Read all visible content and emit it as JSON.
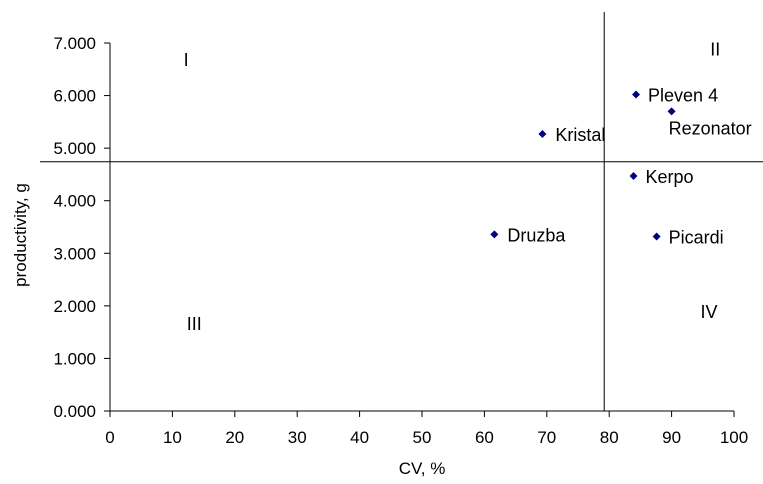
{
  "chart_data": {
    "type": "scatter",
    "title": "",
    "xlabel": "CV, %",
    "ylabel": "productivity, g",
    "xlim": [
      0,
      100
    ],
    "ylim": [
      0,
      7
    ],
    "x_ticks": [
      0,
      10,
      20,
      30,
      40,
      50,
      60,
      70,
      80,
      90,
      100
    ],
    "y_ticks": [
      0,
      1,
      2,
      3,
      4,
      5,
      6,
      7
    ],
    "x_tick_labels": [
      "0",
      "10",
      "20",
      "30",
      "40",
      "50",
      "60",
      "70",
      "80",
      "90",
      "100"
    ],
    "y_tick_labels": [
      "0.000",
      "1.000",
      "2.000",
      "3.000",
      "4.000",
      "5.000",
      "6.000",
      "7.000"
    ],
    "grid": false,
    "marker_color": "#000080",
    "points": [
      {
        "label": "Pleven 4",
        "x": 84.3,
        "y": 6.02
      },
      {
        "label": "Rezonator",
        "x": 90.0,
        "y": 5.7
      },
      {
        "label": "Kristal",
        "x": 69.3,
        "y": 5.27
      },
      {
        "label": "Kerpo",
        "x": 83.9,
        "y": 4.47
      },
      {
        "label": "Druzba",
        "x": 61.6,
        "y": 3.36
      },
      {
        "label": "Picardi",
        "x": 87.6,
        "y": 3.32
      }
    ],
    "reference_lines": {
      "vertical_x": 79.2,
      "horizontal_y": 4.74
    },
    "quadrant_labels": [
      {
        "text": "I",
        "x": 12.2,
        "y": 6.7
      },
      {
        "text": "II",
        "x": 97.0,
        "y": 6.9
      },
      {
        "text": "III",
        "x": 13.5,
        "y": 1.67
      },
      {
        "text": "IV",
        "x": 96.0,
        "y": 1.9
      }
    ]
  }
}
